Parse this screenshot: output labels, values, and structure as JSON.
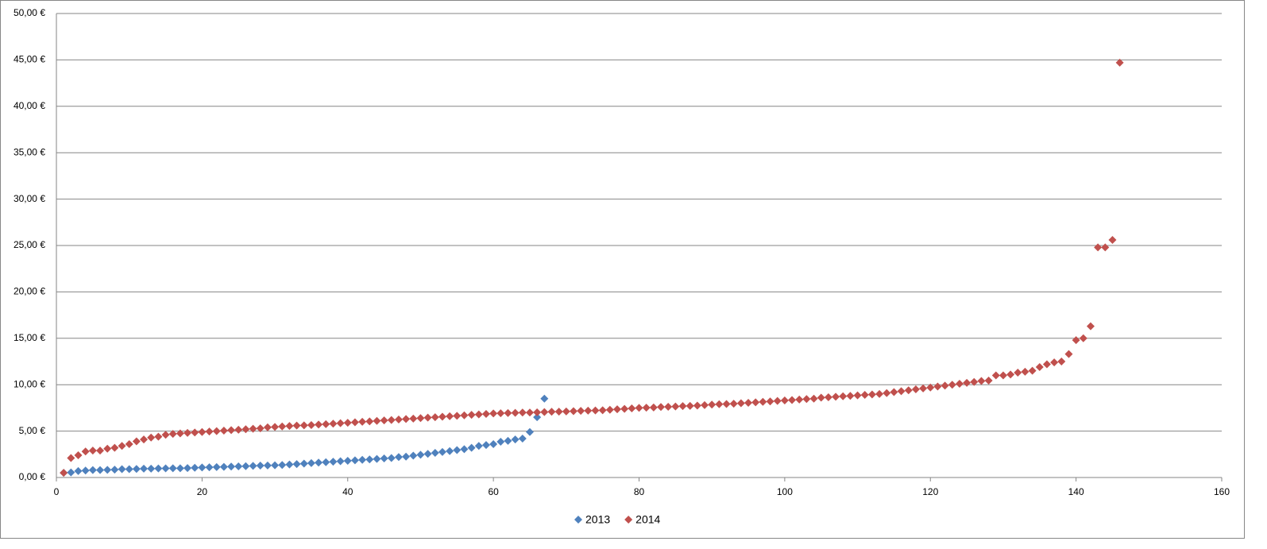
{
  "chart_data": {
    "type": "scatter",
    "xlim": [
      0,
      160
    ],
    "xticks": [
      0,
      20,
      40,
      60,
      80,
      100,
      120,
      140,
      160
    ],
    "ylim": [
      0,
      50
    ],
    "yticks": [
      {
        "value": 0,
        "label": "0,00 €"
      },
      {
        "value": 5,
        "label": "5,00 €"
      },
      {
        "value": 10,
        "label": "10,00 €"
      },
      {
        "value": 15,
        "label": "15,00 €"
      },
      {
        "value": 20,
        "label": "20,00 €"
      },
      {
        "value": 25,
        "label": "25,00 €"
      },
      {
        "value": 30,
        "label": "30,00 €"
      },
      {
        "value": 35,
        "label": "35,00 €"
      },
      {
        "value": 40,
        "label": "40,00 €"
      },
      {
        "value": 45,
        "label": "45,00 €"
      },
      {
        "value": 50,
        "label": "50,00 €"
      }
    ],
    "grid": true,
    "legend": "bottom",
    "series": [
      {
        "name": "2013",
        "color": "#4f81bd",
        "x": [
          1,
          2,
          3,
          4,
          5,
          6,
          7,
          8,
          9,
          10,
          11,
          12,
          13,
          14,
          15,
          16,
          17,
          18,
          19,
          20,
          21,
          22,
          23,
          24,
          25,
          26,
          27,
          28,
          29,
          30,
          31,
          32,
          33,
          34,
          35,
          36,
          37,
          38,
          39,
          40,
          41,
          42,
          43,
          44,
          45,
          46,
          47,
          48,
          49,
          50,
          51,
          52,
          53,
          54,
          55,
          56,
          57,
          58,
          59,
          60,
          61,
          62,
          63,
          64,
          65,
          66,
          67
        ],
        "values": [
          0.5,
          0.55,
          0.7,
          0.75,
          0.8,
          0.8,
          0.82,
          0.85,
          0.9,
          0.9,
          0.92,
          0.95,
          0.95,
          0.97,
          0.98,
          1.0,
          1.0,
          1.02,
          1.05,
          1.08,
          1.1,
          1.12,
          1.15,
          1.18,
          1.2,
          1.22,
          1.25,
          1.28,
          1.3,
          1.32,
          1.35,
          1.4,
          1.45,
          1.5,
          1.55,
          1.6,
          1.65,
          1.7,
          1.75,
          1.8,
          1.85,
          1.9,
          1.95,
          2.0,
          2.05,
          2.1,
          2.2,
          2.25,
          2.35,
          2.45,
          2.55,
          2.65,
          2.75,
          2.85,
          2.95,
          3.05,
          3.2,
          3.4,
          3.5,
          3.6,
          3.85,
          3.95,
          4.1,
          4.2,
          4.9,
          6.5,
          8.5
        ]
      },
      {
        "name": "2014",
        "color": "#c0504d",
        "x": [
          1,
          2,
          3,
          4,
          5,
          6,
          7,
          8,
          9,
          10,
          11,
          12,
          13,
          14,
          15,
          16,
          17,
          18,
          19,
          20,
          21,
          22,
          23,
          24,
          25,
          26,
          27,
          28,
          29,
          30,
          31,
          32,
          33,
          34,
          35,
          36,
          37,
          38,
          39,
          40,
          41,
          42,
          43,
          44,
          45,
          46,
          47,
          48,
          49,
          50,
          51,
          52,
          53,
          54,
          55,
          56,
          57,
          58,
          59,
          60,
          61,
          62,
          63,
          64,
          65,
          66,
          67,
          68,
          69,
          70,
          71,
          72,
          73,
          74,
          75,
          76,
          77,
          78,
          79,
          80,
          81,
          82,
          83,
          84,
          85,
          86,
          87,
          88,
          89,
          90,
          91,
          92,
          93,
          94,
          95,
          96,
          97,
          98,
          99,
          100,
          101,
          102,
          103,
          104,
          105,
          106,
          107,
          108,
          109,
          110,
          111,
          112,
          113,
          114,
          115,
          116,
          117,
          118,
          119,
          120,
          121,
          122,
          123,
          124,
          125,
          126,
          127,
          128,
          129,
          130,
          131,
          132,
          133,
          134,
          135,
          136,
          137,
          138,
          139,
          140,
          141,
          142,
          143,
          144,
          145,
          146
        ],
        "values": [
          0.5,
          2.1,
          2.4,
          2.8,
          2.9,
          2.9,
          3.1,
          3.2,
          3.4,
          3.6,
          3.9,
          4.1,
          4.3,
          4.4,
          4.6,
          4.7,
          4.75,
          4.8,
          4.85,
          4.9,
          4.95,
          5.0,
          5.05,
          5.1,
          5.15,
          5.2,
          5.25,
          5.3,
          5.4,
          5.45,
          5.5,
          5.55,
          5.6,
          5.62,
          5.65,
          5.7,
          5.75,
          5.8,
          5.85,
          5.9,
          5.95,
          6.0,
          6.05,
          6.1,
          6.15,
          6.2,
          6.25,
          6.3,
          6.35,
          6.4,
          6.45,
          6.5,
          6.55,
          6.6,
          6.65,
          6.7,
          6.75,
          6.8,
          6.85,
          6.9,
          6.92,
          6.95,
          6.97,
          7.0,
          7.0,
          7.02,
          7.05,
          7.08,
          7.1,
          7.12,
          7.15,
          7.18,
          7.2,
          7.22,
          7.25,
          7.3,
          7.35,
          7.4,
          7.45,
          7.5,
          7.52,
          7.55,
          7.6,
          7.62,
          7.65,
          7.7,
          7.72,
          7.75,
          7.8,
          7.85,
          7.9,
          7.92,
          7.95,
          8.0,
          8.05,
          8.1,
          8.15,
          8.2,
          8.25,
          8.3,
          8.35,
          8.4,
          8.45,
          8.5,
          8.6,
          8.65,
          8.7,
          8.75,
          8.8,
          8.85,
          8.9,
          8.95,
          9.0,
          9.1,
          9.2,
          9.3,
          9.4,
          9.5,
          9.6,
          9.7,
          9.8,
          9.9,
          10.0,
          10.1,
          10.2,
          10.3,
          10.4,
          10.45,
          11.0,
          11.0,
          11.1,
          11.3,
          11.4,
          11.5,
          11.9,
          12.2,
          12.4,
          12.5,
          13.3,
          14.8,
          15.0,
          16.3,
          24.8,
          24.8,
          25.6,
          44.7
        ]
      }
    ]
  }
}
